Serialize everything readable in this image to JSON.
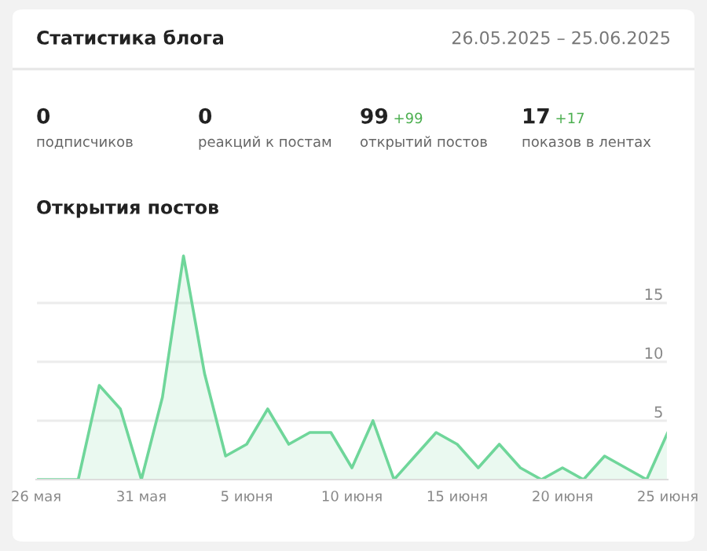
{
  "chart_data": [
    {
      "type": "other",
      "title": "Статистика блога",
      "subtitle": "26.05.2025 – 25.06.2025",
      "annotations": [
        "0\nподписчиков",
        "0\nреакций к постам",
        "99 +99\nоткрытий постов",
        "17 +17\nпоказов в лентах"
      ]
    },
    {
      "type": "area",
      "title": "Открытия постов",
      "categories": [
        "26 мая",
        null,
        null,
        null,
        null,
        "31 мая",
        null,
        null,
        null,
        null,
        "5 июня",
        null,
        null,
        null,
        null,
        "10 июня",
        null,
        null,
        null,
        null,
        "15 июня",
        null,
        null,
        null,
        null,
        "20 июня",
        null,
        null,
        null,
        null,
        "25 июня"
      ],
      "series": [
        {
          "color": "#6fd69a",
          "values": [
            0,
            0,
            0,
            8,
            6,
            0,
            7,
            19,
            9,
            2,
            3,
            6,
            3,
            4,
            4,
            1,
            5,
            0,
            2,
            4,
            3,
            1,
            3,
            1,
            0,
            1,
            0,
            2,
            1,
            0,
            4
          ]
        }
      ],
      "ylim": [
        0,
        20
      ],
      "yticks": [
        5,
        10,
        15
      ],
      "grid": "y",
      "marker": "none"
    }
  ]
}
